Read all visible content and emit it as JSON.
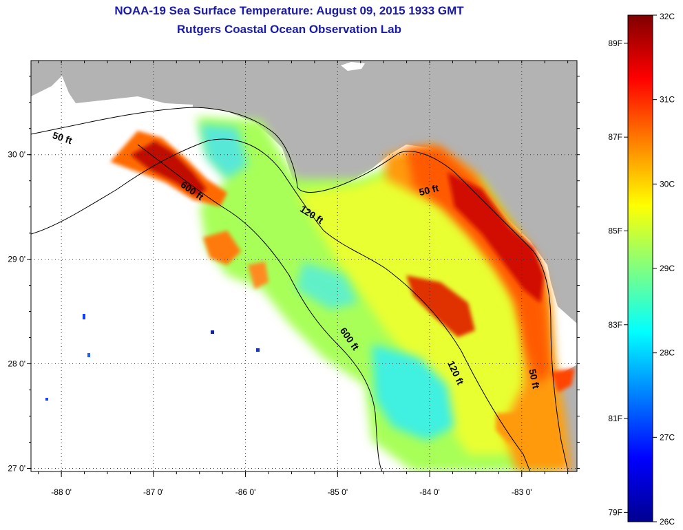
{
  "header": {
    "title": "NOAA-19 Sea Surface Temperature:  August 09, 2015 1933 GMT",
    "subtitle": "Rutgers Coastal Ocean Observation Lab"
  },
  "map": {
    "x_ticks": [
      {
        "value": -88,
        "label": "-88 0'"
      },
      {
        "value": -87,
        "label": "-87 0'"
      },
      {
        "value": -86,
        "label": "-86 0'"
      },
      {
        "value": -85,
        "label": "-85 0'"
      },
      {
        "value": -84,
        "label": "-84 0'"
      },
      {
        "value": -83,
        "label": "-83 0'"
      }
    ],
    "y_ticks": [
      {
        "value": 30,
        "label": "30 0'"
      },
      {
        "value": 29,
        "label": "29 0'"
      },
      {
        "value": 28,
        "label": "28 0'"
      },
      {
        "value": 27,
        "label": "27 0'"
      }
    ],
    "lon_range": [
      -88.33,
      -82.4
    ],
    "lat_range": [
      26.97,
      30.9
    ],
    "contour_labels": [
      {
        "text": "50 ft",
        "lon": -88.0,
        "lat": 30.13,
        "rotate": 18
      },
      {
        "text": "600 ft",
        "lon": -86.6,
        "lat": 29.63,
        "rotate": 35
      },
      {
        "text": "120 ft",
        "lon": -85.3,
        "lat": 29.4,
        "rotate": 32
      },
      {
        "text": "50 ft",
        "lon": -84.0,
        "lat": 29.63,
        "rotate": -14
      },
      {
        "text": "600 ft",
        "lon": -84.9,
        "lat": 28.22,
        "rotate": 55
      },
      {
        "text": "120 ft",
        "lon": -83.75,
        "lat": 27.9,
        "rotate": 65
      },
      {
        "text": "50 ft",
        "lon": -82.9,
        "lat": 27.85,
        "rotate": 78
      }
    ],
    "colors": {
      "land": "#b3b3b3",
      "no_data": "#ffffff",
      "contour": "#000000",
      "grid": "#333333"
    }
  },
  "colorbar": {
    "range_c": [
      26,
      32
    ],
    "celsius_labels": [
      "32C",
      "31C",
      "30C",
      "29C",
      "28C",
      "27C",
      "26C"
    ],
    "fahrenheit_labels": [
      "89F",
      "87F",
      "85F",
      "83F",
      "81F",
      "79F"
    ],
    "colors": [
      "#00008f",
      "#0000ff",
      "#0080ff",
      "#00ffff",
      "#80ff80",
      "#ffff00",
      "#ff8000",
      "#ff0000",
      "#800000"
    ]
  }
}
